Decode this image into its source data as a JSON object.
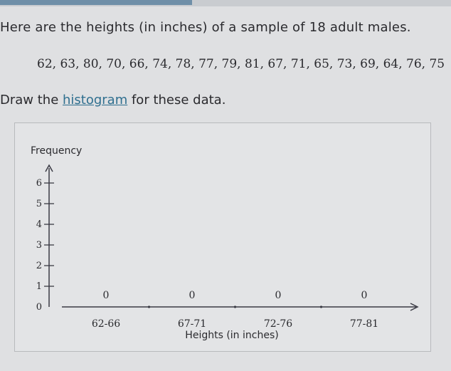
{
  "question": {
    "prompt": "Here are the heights (in inches) of a sample of 18 adult males.",
    "data_values": "62, 63, 80, 70, 66, 74, 78, 77, 79, 81, 67, 71, 65, 73, 69, 64, 76, 75",
    "instruction_prefix": "Draw the ",
    "instruction_link": "histogram",
    "instruction_suffix": " for these data."
  },
  "chart_data": {
    "type": "bar",
    "title": "",
    "ylabel": "Frequency",
    "xlabel": "Heights (in inches)",
    "categories": [
      "62-66",
      "67-71",
      "72-76",
      "77-81"
    ],
    "values": [
      0,
      0,
      0,
      0
    ],
    "ylim": [
      0,
      6
    ],
    "yticks": [
      "0",
      "1",
      "2",
      "3",
      "4",
      "5",
      "6"
    ],
    "grid": false
  },
  "colors": {
    "axis": "#3a3a44",
    "link": "#2f6f8f"
  }
}
